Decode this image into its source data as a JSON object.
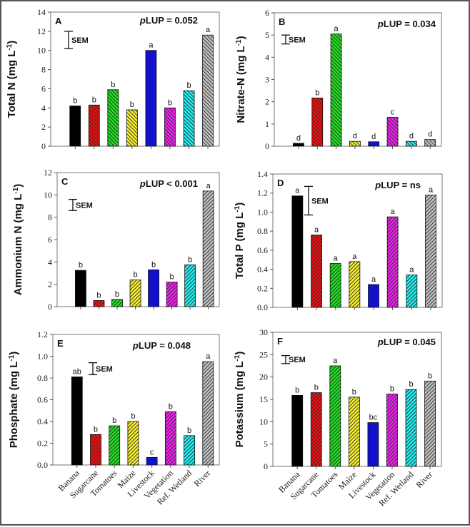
{
  "chart_data": [
    {
      "type": "bar",
      "panel": "A",
      "annotation": "pLUP = 0.052",
      "ylabel": "Total N (mg L-1)",
      "ylim": [
        0,
        14
      ],
      "yticks": [
        0,
        2,
        4,
        6,
        8,
        10,
        12,
        14
      ],
      "categories": [
        "Banana",
        "Sugarcane",
        "Tomatoes",
        "Maize",
        "Livestock",
        "Vegetation",
        "Ref. Wetland",
        "River"
      ],
      "values": [
        4.2,
        4.3,
        5.9,
        3.8,
        10.0,
        4.0,
        5.8,
        11.6
      ],
      "letters": [
        "b",
        "b",
        "b",
        "b",
        "a",
        "b",
        "b",
        "a"
      ],
      "sem_label": "SEM",
      "sem_range": [
        10.2,
        12.0
      ],
      "hatch": "back"
    },
    {
      "type": "bar",
      "panel": "B",
      "annotation": "pLUP = 0.034",
      "ylabel": "Nitrate-N (mg L-1)",
      "ylim": [
        0,
        6
      ],
      "yticks": [
        0,
        1,
        2,
        3,
        4,
        5,
        6
      ],
      "categories": [
        "Banana",
        "Sugarcane",
        "Tomatoes",
        "Maize",
        "Livestock",
        "Vegetation",
        "Ref. Wetland",
        "River"
      ],
      "values": [
        0.13,
        2.17,
        5.05,
        0.22,
        0.2,
        1.3,
        0.22,
        0.3
      ],
      "letters": [
        "d",
        "b",
        "a",
        "d",
        "d",
        "c",
        "d",
        "d"
      ],
      "sem_label": "SEM",
      "sem_range": [
        4.6,
        5.0
      ],
      "hatch": "back"
    },
    {
      "type": "bar",
      "panel": "C",
      "annotation": "pLUP < 0.001",
      "ylabel": "Ammonium N (mg L-1)",
      "ylim": [
        0,
        12
      ],
      "yticks": [
        0,
        2,
        4,
        6,
        8,
        10,
        12
      ],
      "categories": [
        "Banana",
        "Sugarcane",
        "Tomatoes",
        "Maize",
        "Livestock",
        "Vegetation",
        "Ref. Wetland",
        "River"
      ],
      "values": [
        3.25,
        0.55,
        0.65,
        2.4,
        3.3,
        2.2,
        3.75,
        10.35
      ],
      "letters": [
        "b",
        "b",
        "b",
        "b",
        "b",
        "b",
        "b",
        "a"
      ],
      "sem_label": "SEM",
      "sem_range": [
        8.6,
        9.6
      ],
      "hatch": "fwd"
    },
    {
      "type": "bar",
      "panel": "D",
      "annotation": "pLUP = ns",
      "ylabel": "Total P (mg L-1)",
      "ylim": [
        0,
        1.4
      ],
      "yticks": [
        0,
        0.2,
        0.4,
        0.6,
        0.8,
        1.0,
        1.2,
        1.4
      ],
      "categories": [
        "Banana",
        "Sugarcane",
        "Tomatoes",
        "Maize",
        "Livestock",
        "Vegetation",
        "Ref. Wetland",
        "River"
      ],
      "values": [
        1.17,
        0.76,
        0.46,
        0.48,
        0.24,
        0.95,
        0.34,
        1.18
      ],
      "letters": [
        "a",
        "a",
        "a",
        "a",
        "a",
        "a",
        "a",
        "a"
      ],
      "sem_label": "SEM",
      "sem_range": [
        0.97,
        1.27
      ],
      "hatch": "fwd"
    },
    {
      "type": "bar",
      "panel": "E",
      "annotation": "pLUP = 0.048",
      "ylabel": "Phosphate (mg L-1)",
      "ylim": [
        0,
        1.2
      ],
      "yticks": [
        0,
        0.2,
        0.4,
        0.6,
        0.8,
        1.0,
        1.2
      ],
      "categories": [
        "Banana",
        "Sugarcane",
        "Tomatoes",
        "Maize",
        "Livestock",
        "Vegetation",
        "Ref. Wetland",
        "River"
      ],
      "values": [
        0.81,
        0.28,
        0.36,
        0.4,
        0.07,
        0.49,
        0.27,
        0.95
      ],
      "letters": [
        "ab",
        "b",
        "b",
        "b",
        "c",
        "b",
        "b",
        "a"
      ],
      "sem_label": "SEM",
      "sem_range": [
        0.83,
        0.94
      ],
      "hatch": "fwd"
    },
    {
      "type": "bar",
      "panel": "F",
      "annotation": "pLUP = 0.045",
      "ylabel": "Potassium (mg L-1)",
      "ylim": [
        0,
        30
      ],
      "yticks": [
        0,
        5,
        10,
        15,
        20,
        25,
        30
      ],
      "categories": [
        "Banana",
        "Sugarcane",
        "Tomatoes",
        "Maize",
        "Livestock",
        "Vegetation",
        "Ref. Wetland",
        "River"
      ],
      "values": [
        15.9,
        16.5,
        22.5,
        15.5,
        9.8,
        16.2,
        17.2,
        19.1
      ],
      "letters": [
        "b",
        "b",
        "a",
        "b",
        "bc",
        "b",
        "b",
        "b"
      ],
      "sem_label": "SEM",
      "sem_range": [
        23.0,
        24.8
      ],
      "hatch": "fwd"
    }
  ],
  "bar_colors": [
    "#000000",
    "#ee1111",
    "#22dd22",
    "#f5ee30",
    "#1111cc",
    "#ee22ee",
    "#22eeee",
    "#c0c0c0"
  ],
  "hatched": [
    false,
    true,
    true,
    true,
    false,
    true,
    true,
    true
  ]
}
